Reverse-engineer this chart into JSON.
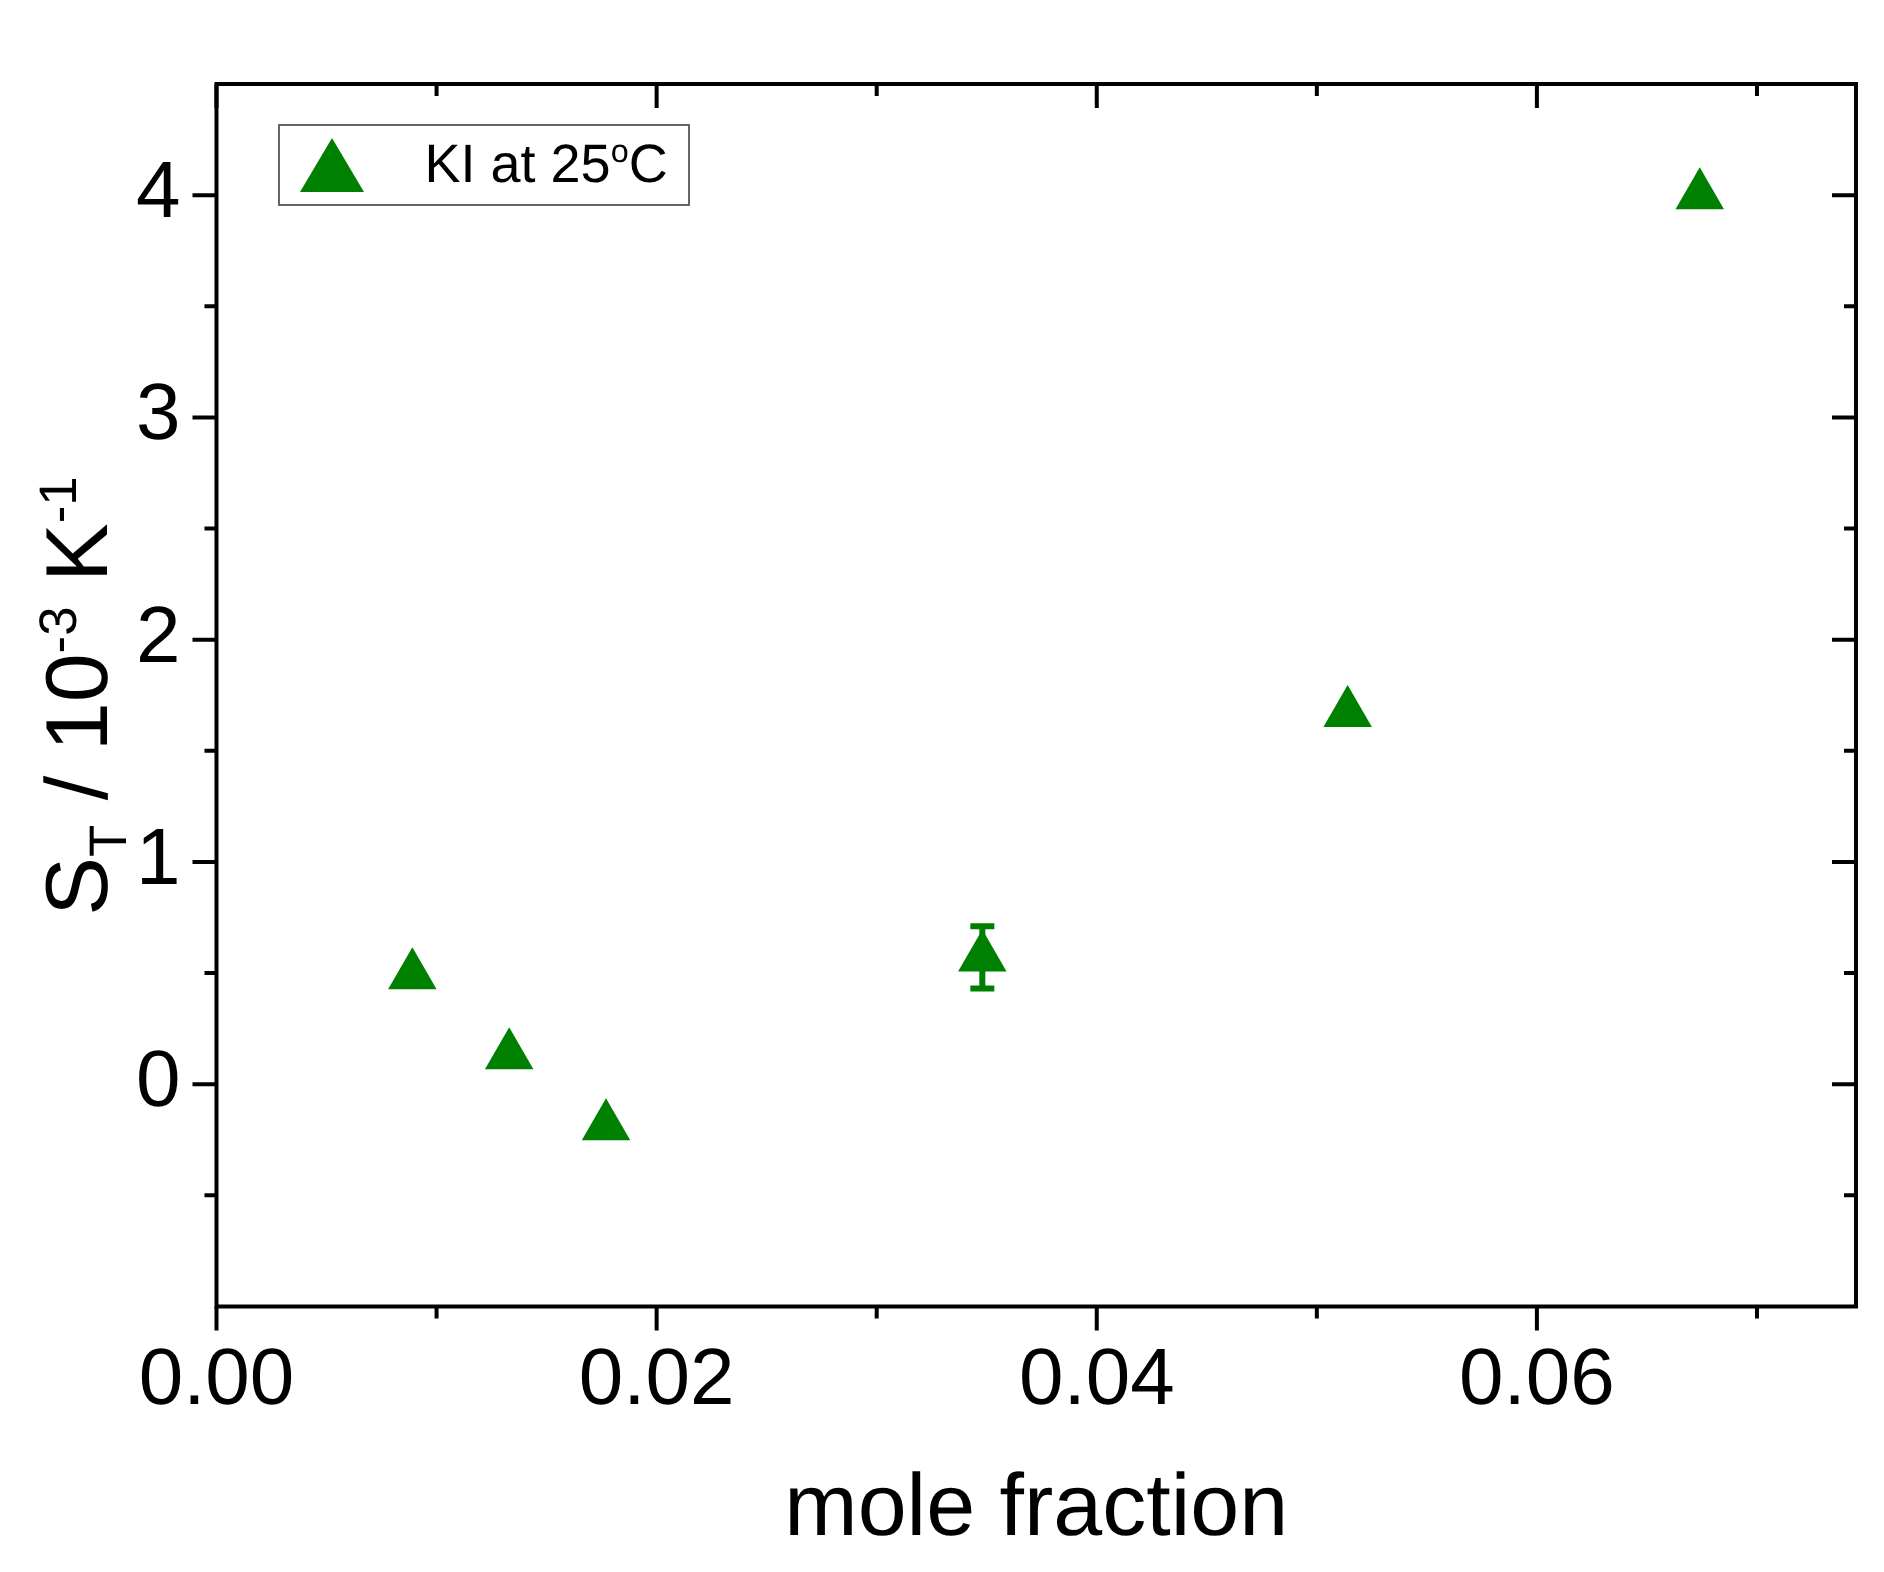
{
  "chart_data": {
    "type": "scatter",
    "xlabel": "mole fraction",
    "ylabel": "S$_{T}$ / 10$^{-3}$ K$^{-1}$",
    "x": [
      0.0089,
      0.0133,
      0.0177,
      0.0348,
      0.0514,
      0.0674
    ],
    "series": [
      {
        "name": "KI at 25$^{o}$C",
        "color": "#008000",
        "values": [
          0.49,
          0.13,
          -0.19,
          0.57,
          1.67,
          4.0
        ],
        "errors": [
          null,
          null,
          null,
          0.14,
          null,
          null
        ]
      }
    ],
    "xlim": [
      0,
      0.0745
    ],
    "ylim": [
      -1,
      4.5
    ],
    "xticks": [
      {
        "value": 0,
        "label": "0.00"
      },
      {
        "value": 0.01,
        "label": null
      },
      {
        "value": 0.02,
        "label": "0.02"
      },
      {
        "value": 0.03,
        "label": null
      },
      {
        "value": 0.04,
        "label": "0.04"
      },
      {
        "value": 0.05,
        "label": null
      },
      {
        "value": 0.06,
        "label": "0.06"
      },
      {
        "value": 0.07,
        "label": null
      }
    ],
    "yticks": [
      {
        "value": -0.5,
        "label": null
      },
      0,
      {
        "value": 0.5,
        "label": null
      },
      1,
      {
        "value": 1.5,
        "label": null
      },
      2,
      {
        "value": 2.5,
        "label": null
      },
      3,
      {
        "value": 3.5,
        "label": null
      },
      4
    ],
    "grid": false,
    "legend": "top left",
    "marker": "triangle"
  }
}
